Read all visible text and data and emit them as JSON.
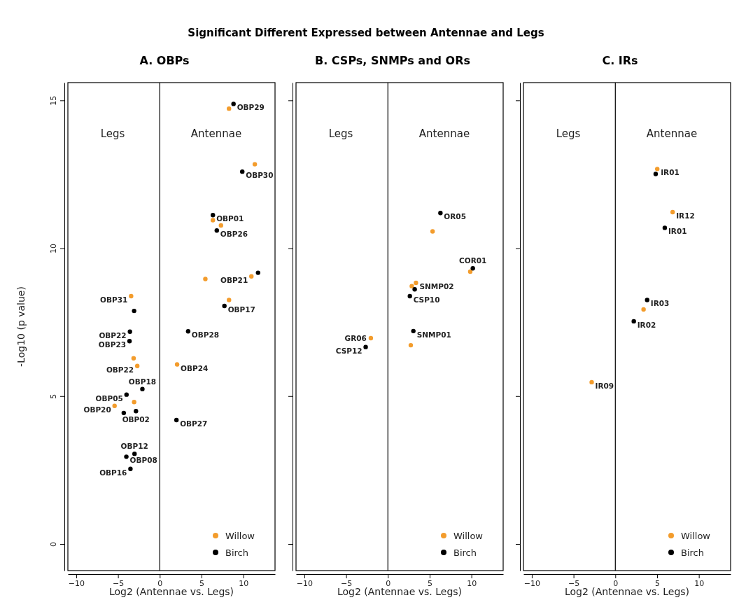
{
  "chart_data": [
    {
      "type": "scatter",
      "title": "Significant Different Expressed between Antennae and Legs",
      "subtitle": "A. OBPs",
      "xlabel": "Log2 (Antennae vs. Legs)",
      "ylabel": "-Log10 (p value)",
      "xlim": [
        -11,
        13.8
      ],
      "ylim": [
        -0.9,
        15.6
      ],
      "xticks": [
        -10,
        -5,
        0,
        5,
        10
      ],
      "yticks": [
        0,
        5,
        10,
        15
      ],
      "marker": "circle",
      "legend": "bottom right",
      "ref_lines": [
        {
          "axis": "x",
          "value": 0
        }
      ],
      "series": [
        {
          "name": "Willow",
          "color": "#f39c2c",
          "x": [
            8.29,
            11.38,
            6.36,
            7.33,
            10.97,
            5.46,
            8.29,
            -3.43,
            -3.13,
            -2.69,
            -5.41,
            -3.07,
            2.08
          ],
          "values": [
            14.72,
            12.84,
            10.95,
            10.77,
            9.05,
            8.96,
            8.25,
            8.38,
            6.28,
            6.02,
            4.67,
            4.8,
            6.07
          ]
        },
        {
          "name": "Birch",
          "color": "#000000",
          "x": [
            8.83,
            9.88,
            6.36,
            6.83,
            11.77,
            3.4,
            7.74,
            -3.07,
            -3.57,
            -3.62,
            -2.08,
            -3.98,
            -4.31,
            -2.85,
            2.0,
            -3.02,
            -4.0,
            -3.51
          ],
          "values": [
            14.88,
            12.59,
            11.12,
            10.6,
            9.17,
            7.19,
            8.05,
            7.88,
            7.18,
            6.86,
            5.24,
            5.05,
            4.43,
            4.49,
            4.19,
            3.05,
            2.95,
            2.54
          ]
        }
      ],
      "annotations": [
        "Legs",
        "Antennae",
        {
          "text": "OBP29",
          "x": 8.83,
          "y": 14.88
        },
        {
          "text": "OBP30",
          "x": 9.88,
          "y": 12.59
        },
        {
          "text": "OBP01",
          "x": 6.36,
          "y": 11.12
        },
        {
          "text": "OBP26",
          "x": 6.83,
          "y": 10.6
        },
        {
          "text": "OBP21",
          "x": 10.97,
          "y": 9.05
        },
        {
          "text": "OBP28",
          "x": 3.4,
          "y": 7.19
        },
        {
          "text": "OBP17",
          "x": 7.74,
          "y": 8.05
        },
        {
          "text": "OBP31",
          "x": -3.43,
          "y": 8.38
        },
        {
          "text": "OBP22",
          "x": -3.57,
          "y": 7.18
        },
        {
          "text": "OBP23",
          "x": -3.62,
          "y": 6.86
        },
        {
          "text": "OBP22",
          "x": -2.69,
          "y": 6.02
        },
        {
          "text": "OBP18",
          "x": -2.08,
          "y": 5.24
        },
        {
          "text": "OBP05",
          "x": -3.98,
          "y": 5.05
        },
        {
          "text": "OBP20",
          "x": -5.41,
          "y": 4.67
        },
        {
          "text": "OBP02",
          "x": -2.85,
          "y": 4.49
        },
        {
          "text": "OBP24",
          "x": 2.08,
          "y": 6.07
        },
        {
          "text": "OBP27",
          "x": 2.0,
          "y": 4.19
        },
        {
          "text": "OBP12",
          "x": -3.02,
          "y": 3.05
        },
        {
          "text": "OBP08",
          "x": -4.0,
          "y": 2.95
        },
        {
          "text": "OBP16",
          "x": -3.51,
          "y": 2.54
        }
      ]
    },
    {
      "type": "scatter",
      "subtitle": "B. CSPs, SNMPs and ORs",
      "xlabel": "Log2 (Antennae vs. Legs)",
      "xlim": [
        -11,
        13.8
      ],
      "ylim": [
        -0.9,
        15.6
      ],
      "xticks": [
        -10,
        -5,
        0,
        5,
        10
      ],
      "yticks": [
        0,
        5,
        10,
        15
      ],
      "tick_labels": "x",
      "marker": "circle",
      "legend": "bottom right",
      "ref_lines": [
        {
          "axis": "x",
          "value": 0
        }
      ],
      "series": [
        {
          "name": "Willow",
          "color": "#f39c2c",
          "x": [
            5.35,
            9.86,
            3.36,
            2.86,
            2.74,
            -2.04
          ],
          "values": [
            10.57,
            9.21,
            8.83,
            8.72,
            6.72,
            6.96
          ]
        },
        {
          "name": "Birch",
          "color": "#000000",
          "x": [
            6.29,
            10.17,
            3.21,
            2.63,
            3.05,
            -2.66
          ],
          "values": [
            11.19,
            9.32,
            8.61,
            8.38,
            7.2,
            6.66
          ]
        }
      ],
      "annotations": [
        "Legs",
        "Antennae",
        {
          "text": "OR05",
          "x": 6.29,
          "y": 11.19
        },
        {
          "text": "COR01",
          "x": 10.17,
          "y": 9.32
        },
        {
          "text": "SNMP02",
          "x": 3.36,
          "y": 8.83
        },
        {
          "text": "CSP10",
          "x": 2.63,
          "y": 8.38
        },
        {
          "text": "SNMP01",
          "x": 3.05,
          "y": 7.2
        },
        {
          "text": "GR06",
          "x": -2.04,
          "y": 6.96
        },
        {
          "text": "CSP12",
          "x": -2.66,
          "y": 6.66
        }
      ]
    },
    {
      "type": "scatter",
      "subtitle": "C. IRs",
      "xlabel": "Log2 (Antennae vs. Legs)",
      "xlim": [
        -11,
        13.8
      ],
      "ylim": [
        -0.9,
        15.6
      ],
      "xticks": [
        -10,
        -5,
        0,
        5,
        10
      ],
      "yticks": [
        0,
        5,
        10,
        15
      ],
      "tick_labels": "x",
      "marker": "circle",
      "legend": "bottom right",
      "ref_lines": [
        {
          "axis": "x",
          "value": 0
        }
      ],
      "series": [
        {
          "name": "Willow",
          "color": "#f39c2c",
          "x": [
            5.02,
            6.86,
            3.38,
            -2.83
          ],
          "values": [
            12.68,
            11.22,
            7.93,
            5.47
          ]
        },
        {
          "name": "Birch",
          "color": "#000000",
          "x": [
            4.83,
            5.92,
            3.81,
            2.21
          ],
          "values": [
            12.51,
            10.69,
            8.25,
            7.53
          ]
        }
      ],
      "annotations": [
        "Legs",
        "Antennae",
        {
          "text": "IR01",
          "x": 5.02,
          "y": 12.68
        },
        {
          "text": "IR12",
          "x": 6.86,
          "y": 11.22
        },
        {
          "text": "IR01",
          "x": 5.92,
          "y": 10.69
        },
        {
          "text": "IR03",
          "x": 3.81,
          "y": 8.25
        },
        {
          "text": "IR02",
          "x": 2.21,
          "y": 7.53
        },
        {
          "text": "IR09",
          "x": -2.83,
          "y": 5.47
        }
      ]
    }
  ]
}
